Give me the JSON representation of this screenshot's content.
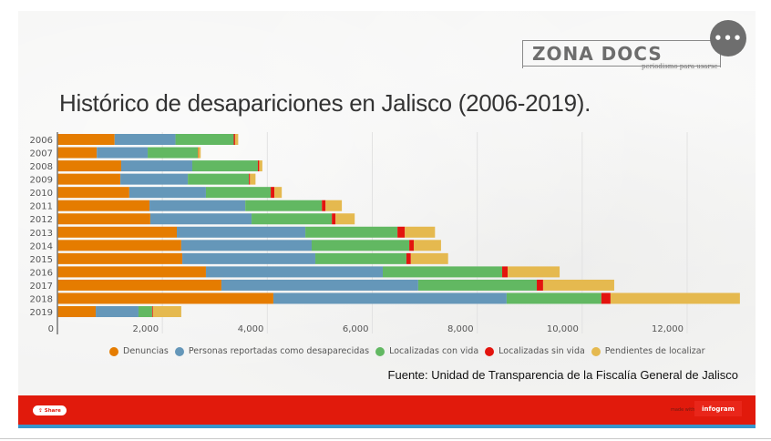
{
  "header": {
    "logo_text": "ZONA DOCS",
    "logo_tagline": "periodismo para usarse",
    "menu_label": "•••"
  },
  "chart_data": {
    "type": "bar",
    "orientation": "horizontal",
    "stacked": true,
    "title": "Histórico de desapariciones en Jalisco (2006-2019).",
    "xlabel": "",
    "ylabel": "",
    "xlim": [
      0,
      13000
    ],
    "x_ticks": [
      0,
      2000,
      4000,
      6000,
      8000,
      10000,
      12000
    ],
    "x_tick_labels": [
      "0",
      "2,000",
      "4,000",
      "6,000",
      "8,000",
      "10,000",
      "12,000"
    ],
    "grid": true,
    "legend_position": "bottom",
    "categories": [
      "2006",
      "2007",
      "2008",
      "2009",
      "2010",
      "2011",
      "2012",
      "2013",
      "2014",
      "2015",
      "2016",
      "2017",
      "2018",
      "2019"
    ],
    "series": [
      {
        "name": "Denuncias",
        "color": "#e57c00",
        "values": [
          1090,
          750,
          1215,
          1200,
          1370,
          1755,
          1770,
          2275,
          2360,
          2380,
          2830,
          3125,
          4115,
          730
        ]
      },
      {
        "name": "Personas reportadas como desaparecidas",
        "color": "#6597b9",
        "values": [
          1160,
          970,
          1355,
          1285,
          1460,
          1825,
          1930,
          2450,
          2485,
          2535,
          3370,
          3750,
          4445,
          815
        ]
      },
      {
        "name": "Localizadas con vida",
        "color": "#62b862",
        "values": [
          1110,
          955,
          1250,
          1165,
          1235,
          1460,
          1530,
          1755,
          1860,
          1735,
          2275,
          2260,
          1805,
          260
        ]
      },
      {
        "name": "Localizadas sin vida",
        "color": "#e3140e",
        "values": [
          25,
          5,
          25,
          20,
          70,
          70,
          70,
          140,
          85,
          85,
          105,
          120,
          175,
          15
        ]
      },
      {
        "name": "Pendientes de localizar",
        "color": "#e5b94f",
        "values": [
          60,
          50,
          60,
          105,
          140,
          310,
          365,
          575,
          520,
          710,
          990,
          1355,
          2465,
          540
        ]
      }
    ],
    "source": "Fuente: Unidad de Transparencia de la Fiscalía General de Jalisco"
  },
  "footer": {
    "share_label": "Share",
    "made_with": "made with",
    "brand": "infogram"
  },
  "colors": {
    "footer_bg": "#e11a0c",
    "footer_stripe": "#3795cc"
  }
}
